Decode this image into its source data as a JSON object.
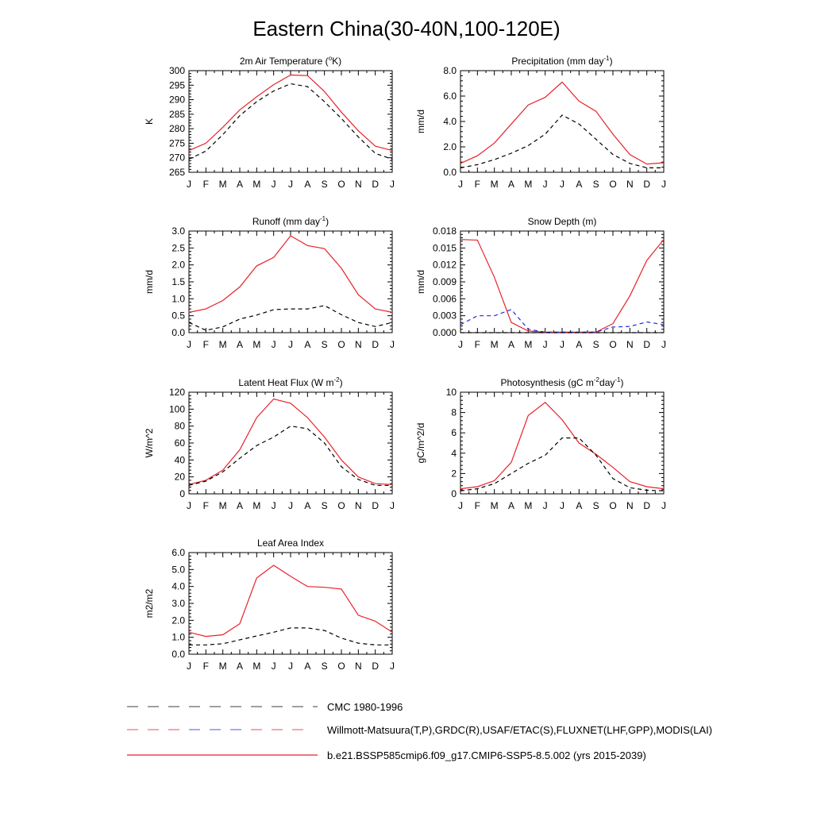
{
  "title": "Eastern China(30-40N,100-120E)",
  "months": [
    "J",
    "F",
    "M",
    "A",
    "M",
    "J",
    "J",
    "A",
    "S",
    "O",
    "N",
    "D",
    "J"
  ],
  "colors": {
    "model": "#e8222b",
    "obs": "#000000",
    "obs_alt": "#1f2fe0"
  },
  "legend": [
    {
      "label": "CMC 1980-1996",
      "style": "dash-black"
    },
    {
      "label": "Willmott-Matsuura(T,P),GRDC(R),USAF/ETAC(S),FLUXNET(LHF,GPP),MODIS(LAI)",
      "style": "dash-multi"
    },
    {
      "label": "b.e21.BSSP585cmip6.f09_g17.CMIP6-SSP5-8.5.002 (yrs 2015-2039)",
      "style": "solid-red"
    }
  ],
  "chart_data": [
    {
      "type": "line",
      "title": "2m Air Temperature (",
      "title_sup": "o",
      "title_tail": "K)",
      "ylabel": "K",
      "ylim": [
        265,
        300
      ],
      "yticks": [
        265,
        270,
        275,
        280,
        285,
        290,
        295,
        300
      ],
      "ytick_labels": [
        "265",
        "270",
        "275",
        "280",
        "285",
        "290",
        "295",
        "300"
      ],
      "series": [
        {
          "values": [
            272.5,
            275,
            280.5,
            286.5,
            291,
            295.2,
            298.5,
            298.3,
            292.8,
            285.7,
            279.3,
            274,
            272.5
          ],
          "color": "#e8222b",
          "dash": false
        },
        {
          "values": [
            269.5,
            272.3,
            278,
            284.5,
            289.3,
            293,
            295.5,
            294.5,
            289.3,
            283.5,
            277.2,
            271.5,
            269.5
          ],
          "color": "#000000",
          "dash": true
        }
      ]
    },
    {
      "type": "line",
      "title": "Precipitation (mm day",
      "title_sup": "-1",
      "title_tail": ")",
      "ylabel": "mm/d",
      "ylim": [
        0,
        8
      ],
      "yticks": [
        0,
        2,
        4,
        6,
        8
      ],
      "ytick_labels": [
        "0.0",
        "2.0",
        "4.0",
        "6.0",
        "8.0"
      ],
      "series": [
        {
          "values": [
            0.7,
            1.3,
            2.3,
            3.8,
            5.3,
            5.9,
            7.1,
            5.6,
            4.8,
            3.0,
            1.4,
            0.65,
            0.75
          ],
          "color": "#e8222b",
          "dash": false
        },
        {
          "values": [
            0.35,
            0.6,
            1.0,
            1.5,
            2.1,
            3.0,
            4.5,
            3.8,
            2.6,
            1.4,
            0.7,
            0.35,
            0.35
          ],
          "color": "#000000",
          "dash": true
        }
      ]
    },
    {
      "type": "line",
      "title": "Runoff (mm day",
      "title_sup": "-1",
      "title_tail": ")",
      "ylabel": "mm/d",
      "ylim": [
        0,
        3
      ],
      "yticks": [
        0,
        0.5,
        1,
        1.5,
        2,
        2.5,
        3
      ],
      "ytick_labels": [
        "0.0",
        "0.5",
        "1.0",
        "1.5",
        "2.0",
        "2.5",
        "3.0"
      ],
      "series": [
        {
          "values": [
            0.6,
            0.7,
            0.95,
            1.35,
            1.97,
            2.22,
            2.86,
            2.57,
            2.48,
            1.9,
            1.12,
            0.7,
            0.6
          ],
          "color": "#e8222b",
          "dash": false
        },
        {
          "values": [
            0.3,
            0.07,
            0.17,
            0.4,
            0.52,
            0.68,
            0.7,
            0.7,
            0.8,
            0.53,
            0.3,
            0.18,
            0.3
          ],
          "color": "#000000",
          "dash": true
        }
      ]
    },
    {
      "type": "line",
      "title": "Snow Depth (m)",
      "title_sup": "",
      "title_tail": "",
      "ylabel": "mm/d",
      "ylim": [
        0,
        0.018
      ],
      "yticks": [
        0,
        0.003,
        0.006,
        0.009,
        0.012,
        0.015,
        0.018
      ],
      "ytick_labels": [
        "0.000",
        "0.003",
        "0.006",
        "0.009",
        "0.012",
        "0.015",
        "0.018"
      ],
      "series": [
        {
          "values": [
            0.0165,
            0.0164,
            0.0098,
            0.0018,
            0.0003,
            0.0001,
            0.0001,
            0.0001,
            0.0001,
            0.0016,
            0.0065,
            0.0128,
            0.0165
          ],
          "color": "#e8222b",
          "dash": false
        },
        {
          "values": [
            0.0014,
            0.003,
            0.003,
            0.0041,
            0.0006,
            0.0001,
            0.0001,
            0.0001,
            0.0001,
            0.001,
            0.0011,
            0.0019,
            0.0014
          ],
          "color": "#1f2fe0",
          "dash": true
        },
        {
          "values": [
            0,
            0,
            0,
            0,
            0,
            0,
            0,
            0,
            0,
            0,
            0,
            0,
            0
          ],
          "color": "#000000",
          "dash": true
        }
      ]
    },
    {
      "type": "line",
      "title": "Latent Heat Flux (W m",
      "title_sup": "-2",
      "title_tail": ")",
      "ylabel": "W/m^2",
      "ylim": [
        0,
        120
      ],
      "yticks": [
        0,
        20,
        40,
        60,
        80,
        100,
        120
      ],
      "ytick_labels": [
        "0",
        "20",
        "40",
        "60",
        "80",
        "100",
        "120"
      ],
      "series": [
        {
          "values": [
            11,
            16,
            28,
            52,
            90,
            112,
            107,
            90,
            67,
            40,
            20,
            12,
            11
          ],
          "color": "#e8222b",
          "dash": false
        },
        {
          "values": [
            10,
            15,
            26,
            42,
            57,
            67,
            80,
            77,
            60,
            32,
            17,
            10,
            10
          ],
          "color": "#000000",
          "dash": true
        }
      ]
    },
    {
      "type": "line",
      "title": "Photosynthesis (gC m",
      "title_sup": "-2",
      "title_tail": "day",
      "title_sup2": "-1",
      "title_tail2": ")",
      "ylabel": "gC/m^2/d",
      "ylim": [
        0,
        10
      ],
      "yticks": [
        0,
        2,
        4,
        6,
        8,
        10
      ],
      "ytick_labels": [
        "0",
        "2",
        "4",
        "6",
        "8",
        "10"
      ],
      "series": [
        {
          "values": [
            0.5,
            0.7,
            1.3,
            3.1,
            7.7,
            9.0,
            7.3,
            5.0,
            3.9,
            2.6,
            1.2,
            0.7,
            0.5
          ],
          "color": "#e8222b",
          "dash": false
        },
        {
          "values": [
            0.3,
            0.5,
            1.0,
            2.0,
            3.0,
            3.8,
            5.5,
            5.5,
            3.8,
            1.5,
            0.6,
            0.35,
            0.3
          ],
          "color": "#000000",
          "dash": true
        }
      ]
    },
    {
      "type": "line",
      "title": "Leaf Area Index",
      "title_sup": "",
      "title_tail": "",
      "ylabel": "m2/m2",
      "ylim": [
        0,
        6
      ],
      "yticks": [
        0,
        1,
        2,
        3,
        4,
        5,
        6
      ],
      "ytick_labels": [
        "0.0",
        "1.0",
        "2.0",
        "3.0",
        "4.0",
        "5.0",
        "6.0"
      ],
      "series": [
        {
          "values": [
            1.3,
            1.05,
            1.15,
            1.8,
            4.5,
            5.25,
            4.6,
            4.0,
            3.95,
            3.85,
            2.3,
            1.95,
            1.3
          ],
          "color": "#e8222b",
          "dash": false
        },
        {
          "values": [
            0.55,
            0.55,
            0.62,
            0.85,
            1.08,
            1.3,
            1.55,
            1.55,
            1.4,
            0.95,
            0.65,
            0.55,
            0.55
          ],
          "color": "#000000",
          "dash": true
        }
      ]
    }
  ]
}
